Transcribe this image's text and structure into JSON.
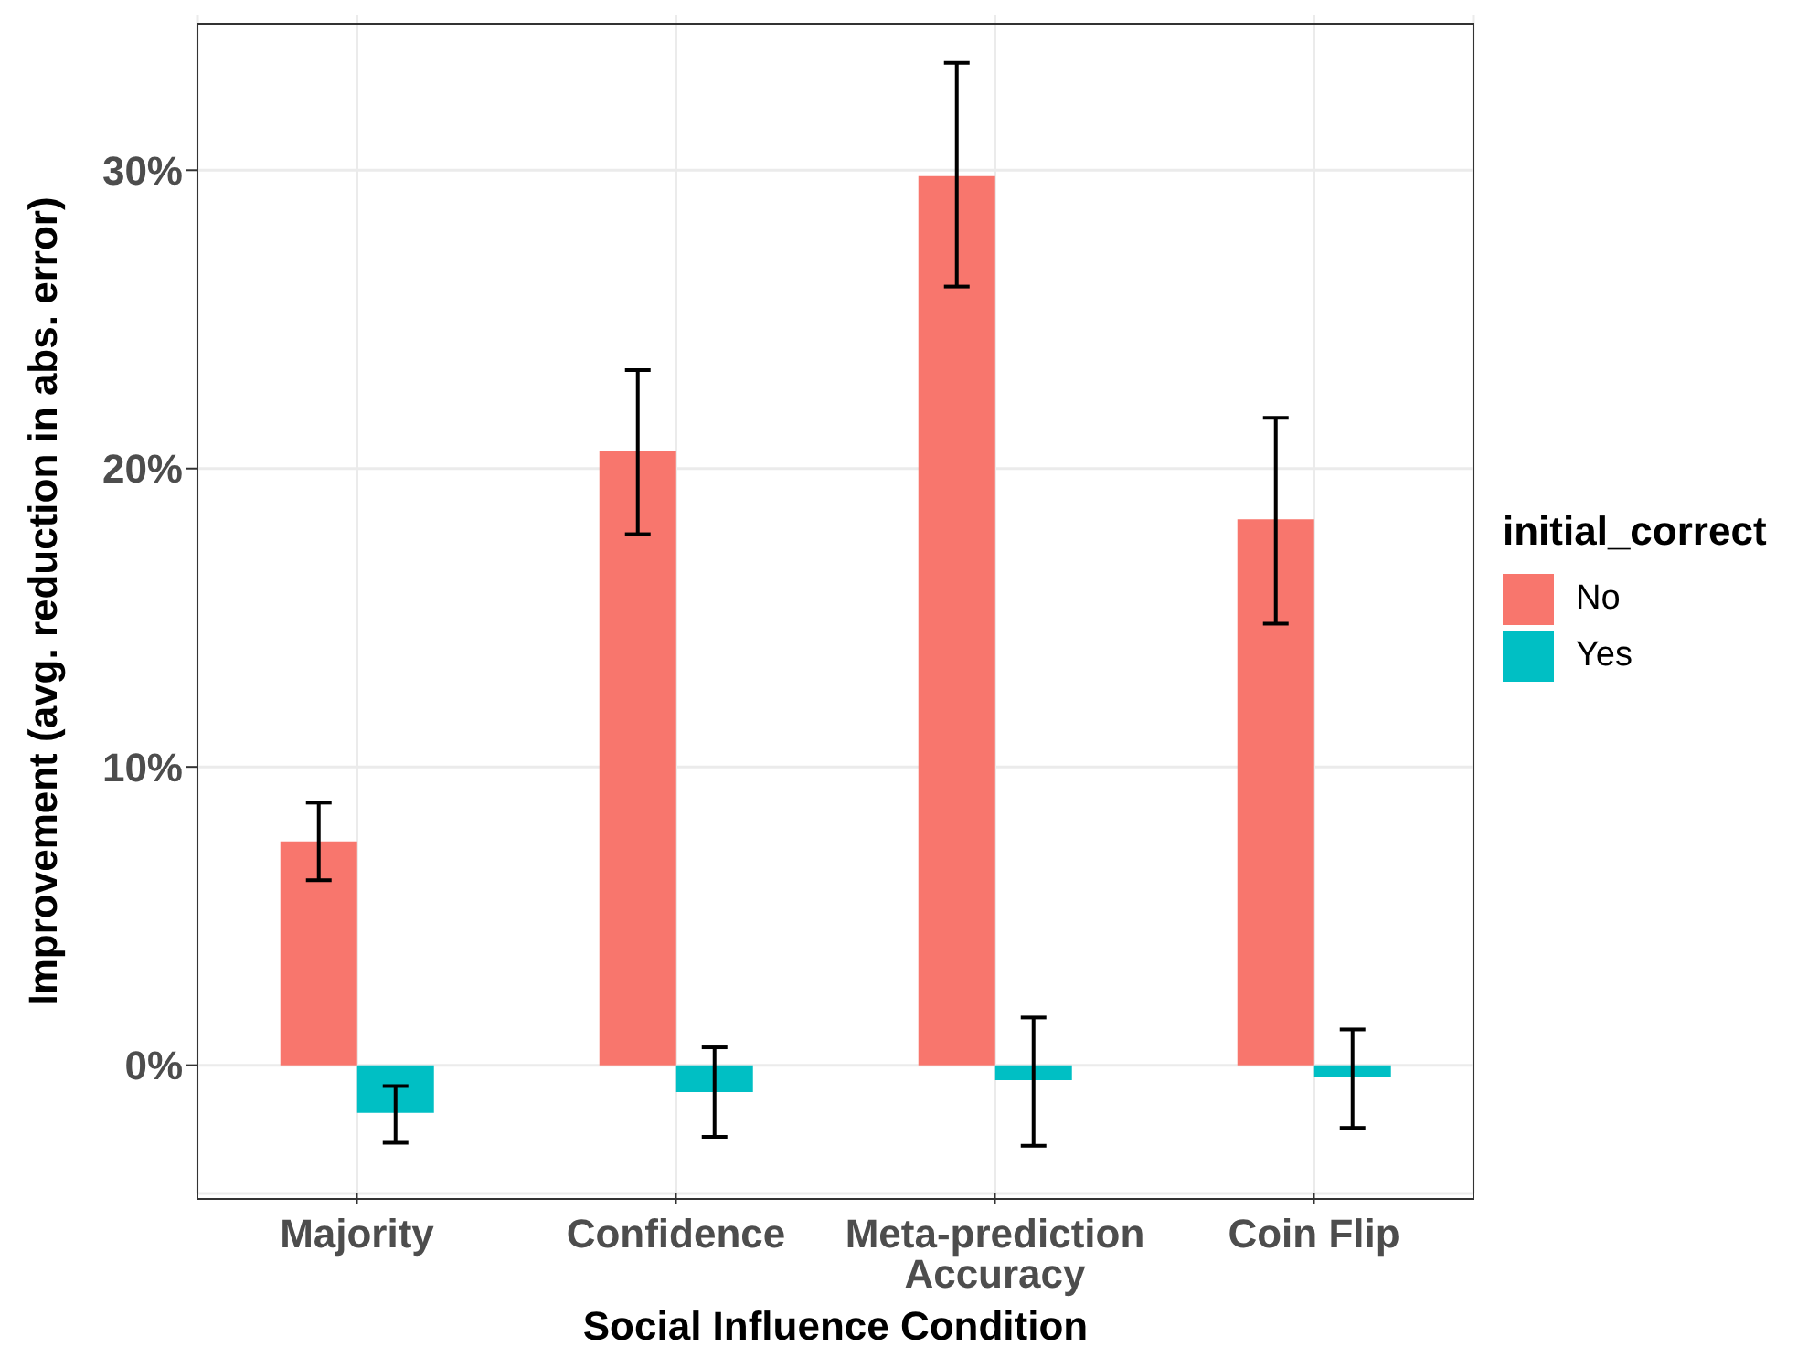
{
  "chart_data": {
    "type": "bar",
    "xlabel": "Social Influence Condition",
    "ylabel": "Improvement (avg. reduction in abs. error)",
    "legend_title": "initial_correct",
    "categories": [
      "Majority",
      "Confidence",
      "Meta-prediction Accuracy",
      "Coin Flip"
    ],
    "series": [
      {
        "name": "No",
        "color": "#f8766d",
        "values": [
          7.5,
          20.6,
          29.8,
          18.3
        ],
        "errors": [
          [
            6.2,
            8.8
          ],
          [
            17.8,
            23.3
          ],
          [
            26.1,
            33.6
          ],
          [
            14.8,
            21.7
          ]
        ]
      },
      {
        "name": "Yes",
        "color": "#00bfc4",
        "values": [
          -1.6,
          -0.9,
          -0.5,
          -0.4
        ],
        "errors": [
          [
            -2.6,
            -0.7
          ],
          [
            -2.4,
            0.6
          ],
          [
            -2.7,
            1.6
          ],
          [
            -2.1,
            1.2
          ]
        ]
      }
    ],
    "ylim": [
      -4.3,
      35.4
    ],
    "yticks": [
      {
        "value": 0,
        "label": "0%"
      },
      {
        "value": 10,
        "label": "10%"
      },
      {
        "value": 20,
        "label": "20%"
      },
      {
        "value": 30,
        "label": "30%"
      }
    ],
    "grid": true,
    "legend": "right"
  }
}
